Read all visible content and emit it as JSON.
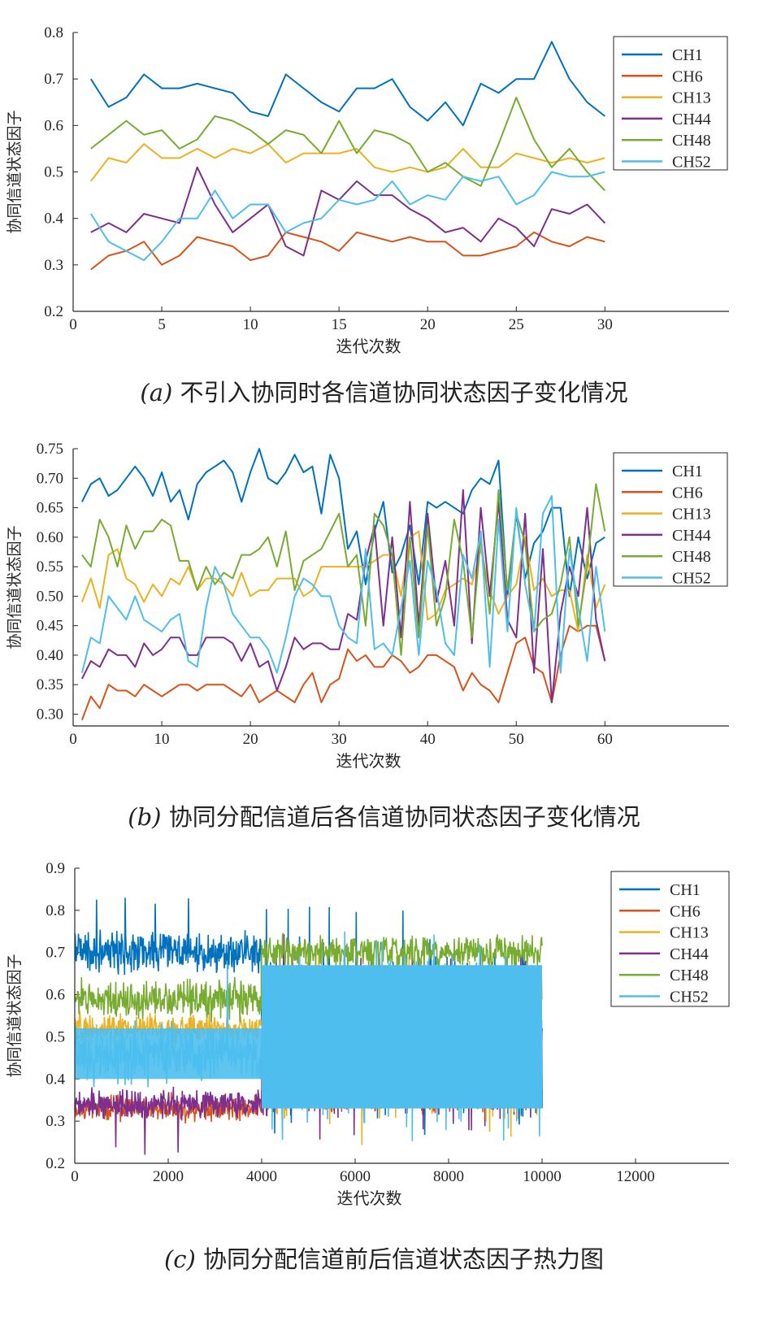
{
  "colors": {
    "CH1": "#0072BD",
    "CH6": "#D95319",
    "CH13": "#EDB120",
    "CH44": "#7E2F8E",
    "CH48": "#77AC30",
    "CH52": "#4DBEEE"
  },
  "captions": [
    {
      "label": "(a)",
      "text": " 不引入协同时各信道协同状态因子变化情况"
    },
    {
      "label": "(b)",
      "text": " 协同分配信道后各信道协同状态因子变化情况"
    },
    {
      "label": "(c)",
      "text": " 协同分配信道前后信道状态因子热力图"
    }
  ],
  "chart_data": [
    {
      "type": "line",
      "xlabel": "迭代次数",
      "ylabel": "协同信道状态因子",
      "xlim": [
        0,
        37
      ],
      "ylim": [
        0.2,
        0.8
      ],
      "xticks": [
        0,
        5,
        10,
        15,
        20,
        25,
        30
      ],
      "yticks": [
        0.2,
        0.3,
        0.4,
        0.5,
        0.6,
        0.7,
        0.8
      ],
      "ytick_labels": [
        "0.2",
        "0.3",
        "0.4",
        "0.5",
        "0.6",
        "0.7",
        "0.8"
      ],
      "legend": "top-right",
      "x": [
        1,
        2,
        3,
        4,
        5,
        6,
        7,
        8,
        9,
        10,
        11,
        12,
        13,
        14,
        15,
        16,
        17,
        18,
        19,
        20,
        21,
        22,
        23,
        24,
        25,
        26,
        27,
        28,
        29,
        30
      ],
      "series": [
        {
          "name": "CH1",
          "values": [
            0.7,
            0.64,
            0.66,
            0.71,
            0.68,
            0.68,
            0.69,
            0.68,
            0.67,
            0.63,
            0.62,
            0.71,
            0.68,
            0.65,
            0.63,
            0.68,
            0.68,
            0.7,
            0.64,
            0.61,
            0.65,
            0.6,
            0.69,
            0.67,
            0.7,
            0.7,
            0.78,
            0.7,
            0.65,
            0.62
          ]
        },
        {
          "name": "CH6",
          "values": [
            0.29,
            0.32,
            0.33,
            0.35,
            0.3,
            0.32,
            0.36,
            0.35,
            0.34,
            0.31,
            0.32,
            0.37,
            0.36,
            0.35,
            0.33,
            0.37,
            0.36,
            0.35,
            0.36,
            0.35,
            0.35,
            0.32,
            0.32,
            0.33,
            0.34,
            0.37,
            0.35,
            0.34,
            0.36,
            0.35
          ]
        },
        {
          "name": "CH13",
          "values": [
            0.48,
            0.53,
            0.52,
            0.56,
            0.53,
            0.53,
            0.55,
            0.53,
            0.55,
            0.54,
            0.56,
            0.52,
            0.54,
            0.54,
            0.54,
            0.55,
            0.51,
            0.5,
            0.51,
            0.5,
            0.51,
            0.55,
            0.51,
            0.51,
            0.54,
            0.53,
            0.52,
            0.53,
            0.52,
            0.53
          ]
        },
        {
          "name": "CH44",
          "values": [
            0.37,
            0.39,
            0.37,
            0.41,
            0.4,
            0.39,
            0.51,
            0.43,
            0.37,
            0.4,
            0.43,
            0.34,
            0.32,
            0.46,
            0.44,
            0.48,
            0.45,
            0.45,
            0.42,
            0.4,
            0.37,
            0.38,
            0.35,
            0.4,
            0.38,
            0.34,
            0.42,
            0.41,
            0.43,
            0.39
          ]
        },
        {
          "name": "CH48",
          "values": [
            0.55,
            0.58,
            0.61,
            0.58,
            0.59,
            0.55,
            0.57,
            0.62,
            0.61,
            0.59,
            0.56,
            0.59,
            0.58,
            0.54,
            0.61,
            0.54,
            0.59,
            0.58,
            0.56,
            0.5,
            0.52,
            0.49,
            0.47,
            0.56,
            0.66,
            0.57,
            0.51,
            0.55,
            0.5,
            0.46
          ]
        },
        {
          "name": "CH52",
          "values": [
            0.41,
            0.35,
            0.33,
            0.31,
            0.35,
            0.4,
            0.4,
            0.46,
            0.4,
            0.43,
            0.43,
            0.37,
            0.39,
            0.4,
            0.44,
            0.43,
            0.44,
            0.48,
            0.43,
            0.45,
            0.44,
            0.49,
            0.48,
            0.49,
            0.43,
            0.45,
            0.5,
            0.49,
            0.49,
            0.5
          ]
        }
      ]
    },
    {
      "type": "line",
      "xlabel": "迭代次数",
      "ylabel": "协同信道状态因子",
      "xlim": [
        0,
        74
      ],
      "ylim": [
        0.28,
        0.75
      ],
      "xticks": [
        0,
        10,
        20,
        30,
        40,
        50,
        60
      ],
      "yticks": [
        0.3,
        0.35,
        0.4,
        0.45,
        0.5,
        0.55,
        0.6,
        0.65,
        0.7,
        0.75
      ],
      "ytick_labels": [
        "0.30",
        "0.35",
        "0.40",
        "0.45",
        "0.50",
        "0.55",
        "0.60",
        "0.65",
        "0.70",
        "0.75"
      ],
      "legend": "top-right",
      "x": [
        1,
        2,
        3,
        4,
        5,
        6,
        7,
        8,
        9,
        10,
        11,
        12,
        13,
        14,
        15,
        16,
        17,
        18,
        19,
        20,
        21,
        22,
        23,
        24,
        25,
        26,
        27,
        28,
        29,
        30,
        31,
        32,
        33,
        34,
        35,
        36,
        37,
        38,
        39,
        40,
        41,
        42,
        43,
        44,
        45,
        46,
        47,
        48,
        49,
        50,
        51,
        52,
        53,
        54,
        55,
        56,
        57,
        58,
        59,
        60
      ],
      "series": [
        {
          "name": "CH1",
          "values": [
            0.66,
            0.69,
            0.7,
            0.67,
            0.68,
            0.7,
            0.72,
            0.7,
            0.67,
            0.71,
            0.66,
            0.68,
            0.63,
            0.69,
            0.71,
            0.72,
            0.73,
            0.71,
            0.66,
            0.71,
            0.75,
            0.7,
            0.69,
            0.71,
            0.74,
            0.71,
            0.72,
            0.64,
            0.74,
            0.7,
            0.58,
            0.61,
            0.52,
            0.61,
            0.66,
            0.54,
            0.57,
            0.62,
            0.52,
            0.66,
            0.65,
            0.66,
            0.65,
            0.64,
            0.68,
            0.7,
            0.69,
            0.73,
            0.5,
            0.64,
            0.53,
            0.59,
            0.61,
            0.65,
            0.65,
            0.5,
            0.6,
            0.53,
            0.59,
            0.6
          ]
        },
        {
          "name": "CH6",
          "values": [
            0.29,
            0.33,
            0.31,
            0.35,
            0.34,
            0.34,
            0.33,
            0.35,
            0.34,
            0.33,
            0.34,
            0.35,
            0.35,
            0.34,
            0.35,
            0.35,
            0.35,
            0.34,
            0.33,
            0.35,
            0.32,
            0.33,
            0.34,
            0.33,
            0.32,
            0.35,
            0.37,
            0.32,
            0.35,
            0.36,
            0.41,
            0.39,
            0.4,
            0.38,
            0.38,
            0.4,
            0.39,
            0.37,
            0.38,
            0.4,
            0.4,
            0.39,
            0.38,
            0.34,
            0.37,
            0.35,
            0.34,
            0.32,
            0.37,
            0.42,
            0.43,
            0.38,
            0.37,
            0.32,
            0.4,
            0.45,
            0.44,
            0.45,
            0.45,
            0.39
          ]
        },
        {
          "name": "CH13",
          "values": [
            0.49,
            0.53,
            0.48,
            0.57,
            0.58,
            0.53,
            0.52,
            0.49,
            0.52,
            0.5,
            0.53,
            0.52,
            0.55,
            0.51,
            0.53,
            0.53,
            0.52,
            0.5,
            0.54,
            0.5,
            0.51,
            0.51,
            0.53,
            0.53,
            0.53,
            0.5,
            0.51,
            0.55,
            0.55,
            0.55,
            0.55,
            0.55,
            0.55,
            0.56,
            0.57,
            0.57,
            0.5,
            0.6,
            0.61,
            0.46,
            0.47,
            0.51,
            0.52,
            0.53,
            0.52,
            0.58,
            0.51,
            0.47,
            0.5,
            0.52,
            0.6,
            0.51,
            0.53,
            0.5,
            0.51,
            0.51,
            0.44,
            0.57,
            0.48,
            0.52
          ]
        },
        {
          "name": "CH44",
          "values": [
            0.36,
            0.39,
            0.38,
            0.41,
            0.4,
            0.4,
            0.38,
            0.42,
            0.4,
            0.41,
            0.43,
            0.43,
            0.4,
            0.4,
            0.43,
            0.43,
            0.43,
            0.42,
            0.39,
            0.42,
            0.38,
            0.39,
            0.34,
            0.38,
            0.43,
            0.41,
            0.42,
            0.42,
            0.41,
            0.41,
            0.47,
            0.46,
            0.56,
            0.62,
            0.45,
            0.6,
            0.43,
            0.66,
            0.45,
            0.64,
            0.49,
            0.56,
            0.45,
            0.68,
            0.42,
            0.65,
            0.5,
            0.66,
            0.46,
            0.43,
            0.64,
            0.37,
            0.58,
            0.32,
            0.47,
            0.55,
            0.5,
            0.65,
            0.46,
            0.39
          ]
        },
        {
          "name": "CH48",
          "values": [
            0.57,
            0.55,
            0.63,
            0.6,
            0.55,
            0.62,
            0.58,
            0.61,
            0.61,
            0.63,
            0.62,
            0.56,
            0.56,
            0.51,
            0.55,
            0.52,
            0.54,
            0.53,
            0.57,
            0.57,
            0.58,
            0.6,
            0.55,
            0.61,
            0.51,
            0.56,
            0.57,
            0.58,
            0.61,
            0.64,
            0.55,
            0.57,
            0.45,
            0.64,
            0.62,
            0.57,
            0.4,
            0.6,
            0.43,
            0.62,
            0.45,
            0.5,
            0.63,
            0.56,
            0.43,
            0.6,
            0.47,
            0.68,
            0.51,
            0.64,
            0.59,
            0.44,
            0.46,
            0.47,
            0.52,
            0.6,
            0.45,
            0.55,
            0.69,
            0.61
          ]
        },
        {
          "name": "CH52",
          "values": [
            0.37,
            0.43,
            0.42,
            0.5,
            0.48,
            0.46,
            0.5,
            0.46,
            0.45,
            0.44,
            0.46,
            0.47,
            0.39,
            0.38,
            0.48,
            0.55,
            0.52,
            0.47,
            0.45,
            0.43,
            0.43,
            0.41,
            0.37,
            0.43,
            0.5,
            0.53,
            0.52,
            0.5,
            0.5,
            0.45,
            0.43,
            0.42,
            0.58,
            0.41,
            0.42,
            0.4,
            0.48,
            0.56,
            0.4,
            0.56,
            0.51,
            0.42,
            0.4,
            0.57,
            0.53,
            0.61,
            0.38,
            0.63,
            0.44,
            0.65,
            0.52,
            0.44,
            0.64,
            0.67,
            0.37,
            0.58,
            0.48,
            0.39,
            0.55,
            0.44
          ]
        }
      ]
    },
    {
      "type": "line",
      "xlabel": "迭代次数",
      "ylabel": "协同信道状态因子",
      "xlim": [
        0,
        14000
      ],
      "ylim": [
        0.2,
        0.9
      ],
      "xticks": [
        0,
        2000,
        4000,
        6000,
        8000,
        10000,
        12000
      ],
      "yticks": [
        0.2,
        0.3,
        0.4,
        0.5,
        0.6,
        0.7,
        0.8,
        0.9
      ],
      "ytick_labels": [
        "0.2",
        "0.3",
        "0.4",
        "0.5",
        "0.6",
        "0.7",
        "0.8",
        "0.9"
      ],
      "legend": "top-right",
      "x_end": 10000,
      "switch_at": 4000,
      "series": [
        {
          "name": "CH1",
          "phase1": {
            "center": 0.7,
            "spread": 0.045,
            "max": 0.83
          },
          "phase2": {
            "center": 0.5,
            "spread": 0.17,
            "max": 0.81
          }
        },
        {
          "name": "CH6",
          "phase1": {
            "center": 0.33,
            "spread": 0.025
          },
          "phase2": {
            "center": 0.355,
            "spread": 0.03
          }
        },
        {
          "name": "CH13",
          "phase1": {
            "center": 0.52,
            "spread": 0.03
          },
          "phase2": {
            "center": 0.5,
            "spread": 0.17
          }
        },
        {
          "name": "CH44",
          "phase1": {
            "center": 0.34,
            "spread": 0.03,
            "min": 0.22
          },
          "phase2": {
            "center": 0.5,
            "spread": 0.17
          }
        },
        {
          "name": "CH48",
          "phase1": {
            "center": 0.59,
            "spread": 0.04
          },
          "phase2": {
            "center": 0.7,
            "spread": 0.035
          }
        },
        {
          "name": "CH52",
          "phase1": {
            "center": 0.46,
            "spread": 0.06,
            "max": 0.68
          },
          "phase2": {
            "center": 0.5,
            "spread": 0.17,
            "min": 0.28
          }
        }
      ]
    }
  ]
}
